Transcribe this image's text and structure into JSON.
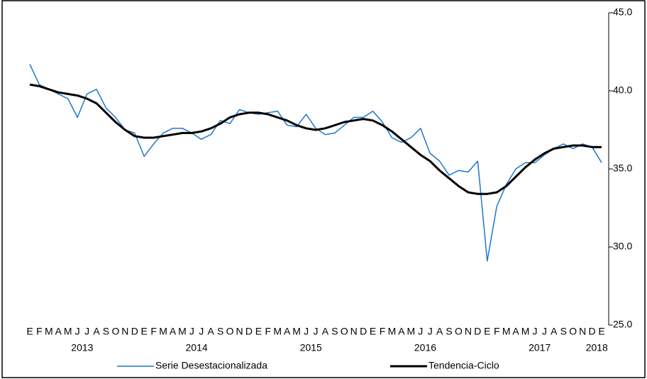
{
  "chart_data": {
    "type": "line",
    "categories": [
      "E",
      "F",
      "M",
      "A",
      "M",
      "J",
      "J",
      "A",
      "S",
      "O",
      "N",
      "D",
      "E",
      "F",
      "M",
      "A",
      "M",
      "J",
      "J",
      "A",
      "S",
      "O",
      "N",
      "D",
      "E",
      "F",
      "M",
      "A",
      "M",
      "J",
      "J",
      "A",
      "S",
      "O",
      "N",
      "D",
      "E",
      "F",
      "M",
      "A",
      "M",
      "J",
      "J",
      "A",
      "S",
      "O",
      "N",
      "D",
      "E",
      "F",
      "M",
      "A",
      "M",
      "J",
      "J",
      "A",
      "S",
      "O",
      "N",
      "D",
      "E"
    ],
    "groups": [
      null,
      null,
      null,
      null,
      null,
      null,
      "2013",
      null,
      null,
      null,
      null,
      null,
      null,
      null,
      null,
      null,
      null,
      null,
      "2014",
      null,
      null,
      null,
      null,
      null,
      null,
      null,
      null,
      null,
      null,
      null,
      "2015",
      null,
      null,
      null,
      null,
      null,
      null,
      null,
      null,
      null,
      null,
      null,
      "2016",
      null,
      null,
      null,
      null,
      null,
      null,
      null,
      null,
      null,
      null,
      null,
      "2017",
      null,
      null,
      null,
      null,
      null,
      "2018"
    ],
    "series": [
      {
        "name": "Serie Desestacionalizada",
        "color": "#1f77c8",
        "width": 1.5,
        "values": [
          41.7,
          40.4,
          40.1,
          39.8,
          39.5,
          38.3,
          39.8,
          40.1,
          38.9,
          38.3,
          37.5,
          37.3,
          35.8,
          36.6,
          37.3,
          37.6,
          37.6,
          37.3,
          36.9,
          37.2,
          38.1,
          37.9,
          38.8,
          38.6,
          38.5,
          38.6,
          38.7,
          37.8,
          37.7,
          38.5,
          37.6,
          37.2,
          37.3,
          37.8,
          38.3,
          38.3,
          38.7,
          38.0,
          37.0,
          36.7,
          37.0,
          37.6,
          36.0,
          35.5,
          34.6,
          34.9,
          34.8,
          35.5,
          29.1,
          32.6,
          34.0,
          35.0,
          35.4,
          35.4,
          35.9,
          36.3,
          36.6,
          36.3,
          36.6,
          36.4,
          35.4
        ]
      },
      {
        "name": "Tendencia-Ciclo",
        "color": "#000000",
        "width": 3,
        "values": [
          40.4,
          40.3,
          40.1,
          39.9,
          39.8,
          39.7,
          39.5,
          39.2,
          38.6,
          38.0,
          37.5,
          37.1,
          37.0,
          37.0,
          37.1,
          37.2,
          37.3,
          37.3,
          37.4,
          37.6,
          37.9,
          38.3,
          38.5,
          38.6,
          38.6,
          38.5,
          38.3,
          38.1,
          37.8,
          37.6,
          37.5,
          37.6,
          37.8,
          38.0,
          38.1,
          38.2,
          38.1,
          37.8,
          37.4,
          36.9,
          36.4,
          35.9,
          35.5,
          34.9,
          34.4,
          33.9,
          33.5,
          33.4,
          33.4,
          33.5,
          33.9,
          34.5,
          35.1,
          35.6,
          36.0,
          36.3,
          36.4,
          36.5,
          36.5,
          36.4,
          36.4
        ]
      }
    ],
    "ylim": [
      25,
      45
    ],
    "yticks": [
      {
        "value": 25,
        "label": "25.0"
      },
      {
        "value": 30,
        "label": "30.0"
      },
      {
        "value": 35,
        "label": "35.0"
      },
      {
        "value": 40,
        "label": "40.0"
      },
      {
        "value": 45,
        "label": "45.0"
      }
    ],
    "y_axis_side": "right",
    "grid": false
  }
}
